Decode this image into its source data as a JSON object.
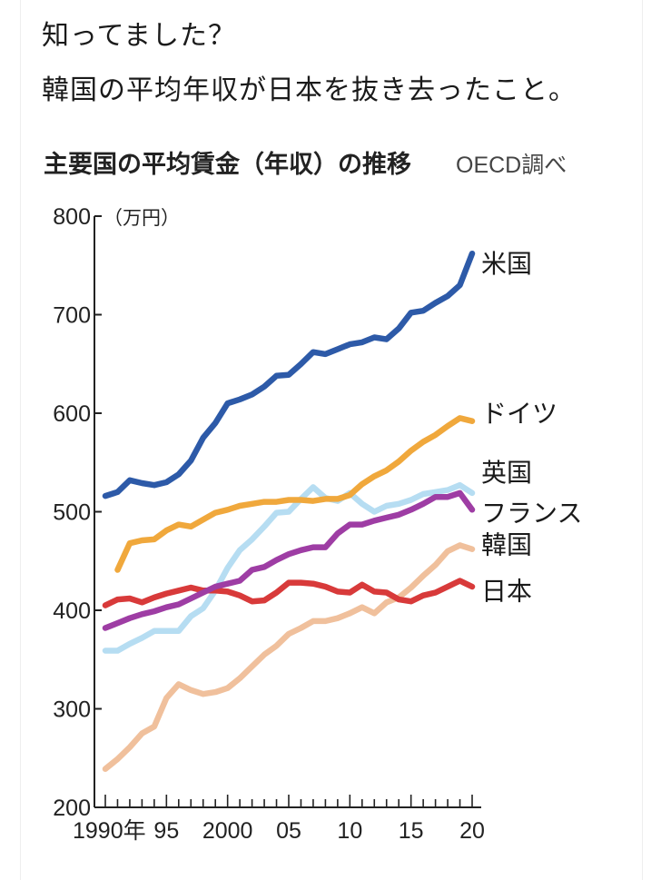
{
  "post": {
    "line1": "知ってました？",
    "line2": "韓国の平均年収が日本を抜き去ったこと。"
  },
  "chart_data": {
    "type": "line",
    "title": "主要国の平均賃金（年収）の推移",
    "source": "OECD調べ",
    "unit": "（万円）",
    "xlabel": "",
    "ylabel": "",
    "ylim": [
      200,
      800
    ],
    "yticks": [
      200,
      300,
      400,
      500,
      600,
      700,
      800
    ],
    "xlim": [
      1990,
      2020
    ],
    "xticks": [
      {
        "year": 1990,
        "label": "1990年"
      },
      {
        "year": 1995,
        "label": "95"
      },
      {
        "year": 2000,
        "label": "2000"
      },
      {
        "year": 2005,
        "label": "05"
      },
      {
        "year": 2010,
        "label": "10"
      },
      {
        "year": 2015,
        "label": "15"
      },
      {
        "year": 2020,
        "label": "20"
      }
    ],
    "grid": false,
    "legend": "right-end labels",
    "x": [
      1990,
      1991,
      1992,
      1993,
      1994,
      1995,
      1996,
      1997,
      1998,
      1999,
      2000,
      2001,
      2002,
      2003,
      2004,
      2005,
      2006,
      2007,
      2008,
      2009,
      2010,
      2011,
      2012,
      2013,
      2014,
      2015,
      2016,
      2017,
      2018,
      2019,
      2020
    ],
    "series": [
      {
        "name": "米国",
        "color": "#2d5aa8",
        "values": [
          516,
          520,
          532,
          529,
          527,
          530,
          538,
          552,
          575,
          590,
          610,
          614,
          619,
          627,
          638,
          639,
          650,
          662,
          660,
          665,
          670,
          672,
          677,
          675,
          686,
          702,
          704,
          712,
          719,
          730,
          762
        ]
      },
      {
        "name": "ドイツ",
        "color": "#f0a83c",
        "values": [
          null,
          441,
          468,
          471,
          472,
          481,
          487,
          485,
          492,
          499,
          502,
          506,
          508,
          510,
          510,
          512,
          512,
          511,
          513,
          513,
          517,
          528,
          536,
          542,
          551,
          562,
          571,
          578,
          587,
          595,
          592
        ]
      },
      {
        "name": "英国",
        "color": "#b6ddf2",
        "values": [
          359,
          359,
          366,
          372,
          379,
          379,
          379,
          394,
          402,
          420,
          443,
          461,
          472,
          485,
          499,
          500,
          513,
          525,
          514,
          511,
          519,
          508,
          500,
          506,
          508,
          512,
          518,
          520,
          522,
          527,
          519
        ]
      },
      {
        "name": "フランス",
        "color": "#9e3da4",
        "values": [
          382,
          387,
          392,
          396,
          399,
          403,
          406,
          412,
          418,
          424,
          427,
          430,
          441,
          444,
          451,
          457,
          461,
          464,
          464,
          478,
          487,
          487,
          491,
          494,
          497,
          502,
          508,
          515,
          515,
          519,
          502
        ]
      },
      {
        "name": "韓国",
        "color": "#f0c09c",
        "values": [
          239,
          249,
          261,
          275,
          282,
          311,
          325,
          319,
          315,
          317,
          321,
          331,
          343,
          355,
          364,
          376,
          382,
          389,
          389,
          392,
          397,
          403,
          397,
          408,
          413,
          423,
          435,
          446,
          460,
          466,
          462
        ]
      },
      {
        "name": "日本",
        "color": "#d83a3a",
        "values": [
          405,
          411,
          412,
          408,
          413,
          417,
          420,
          423,
          420,
          420,
          419,
          415,
          409,
          410,
          418,
          428,
          428,
          427,
          424,
          419,
          418,
          426,
          419,
          418,
          411,
          409,
          415,
          418,
          424,
          430,
          424
        ]
      }
    ]
  }
}
